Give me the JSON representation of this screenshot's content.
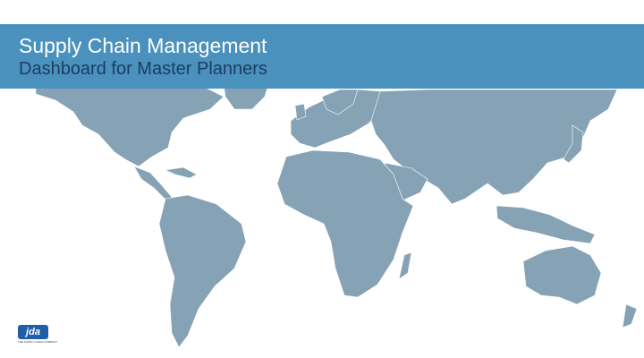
{
  "header": {
    "title": "Supply Chain Management",
    "subtitle": "Dashboard for Master Planners",
    "banner_color": "#4a92bd",
    "subtitle_color": "#1c3c64"
  },
  "map": {
    "land_color": "#86a2b5"
  },
  "logo": {
    "text": "jda",
    "tagline": "THE SUPPLY CHAIN COMPANY"
  }
}
